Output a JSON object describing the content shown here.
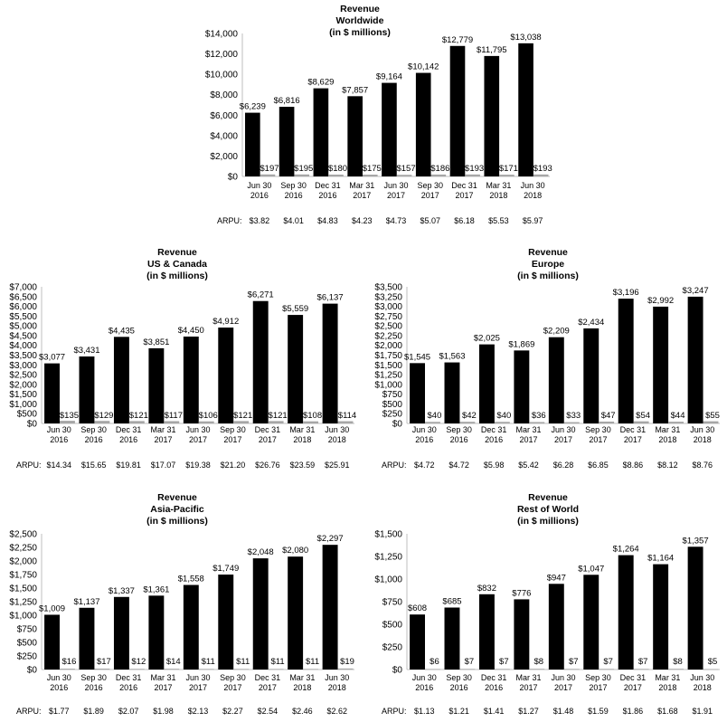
{
  "arpu_label": "ARPU:",
  "categories": [
    [
      "Jun 30",
      "2016"
    ],
    [
      "Sep 30",
      "2016"
    ],
    [
      "Dec 31",
      "2016"
    ],
    [
      "Mar 31",
      "2017"
    ],
    [
      "Jun 30",
      "2017"
    ],
    [
      "Sep 30",
      "2017"
    ],
    [
      "Dec 31",
      "2017"
    ],
    [
      "Mar 31",
      "2018"
    ],
    [
      "Jun 30",
      "2018"
    ]
  ],
  "chart_data": [
    {
      "type": "bar",
      "title": [
        "Revenue",
        "Worldwide",
        "(in $ millions)"
      ],
      "ylim": [
        0,
        14000
      ],
      "ytick_step": 2000,
      "series": [
        {
          "name": "",
          "color": "#000000",
          "values": [
            6239,
            6816,
            8629,
            7857,
            9164,
            10142,
            12779,
            11795,
            13038
          ],
          "labels": [
            "$6,239",
            "$6,816",
            "$8,629",
            "$7,857",
            "$9,164",
            "$10,142",
            "$12,779",
            "$11,795",
            "$13,038"
          ]
        },
        {
          "name": "",
          "color": "#a6a6a6",
          "values": [
            197,
            195,
            180,
            175,
            157,
            186,
            193,
            171,
            193
          ],
          "labels": [
            "$197",
            "$195",
            "$180",
            "$175",
            "$157",
            "$186",
            "$193",
            "$171",
            "$193"
          ]
        }
      ],
      "arpu": [
        "$3.82",
        "$4.01",
        "$4.83",
        "$4.23",
        "$4.73",
        "$5.07",
        "$6.18",
        "$5.53",
        "$5.97"
      ]
    },
    {
      "type": "bar",
      "title": [
        "Revenue",
        "US & Canada",
        "(in $ millions)"
      ],
      "ylim": [
        0,
        7000
      ],
      "ytick_step": 500,
      "series": [
        {
          "name": "",
          "color": "#000000",
          "values": [
            3077,
            3431,
            4435,
            3851,
            4450,
            4912,
            6271,
            5559,
            6137
          ],
          "labels": [
            "$3,077",
            "$3,431",
            "$4,435",
            "$3,851",
            "$4,450",
            "$4,912",
            "$6,271",
            "$5,559",
            "$6,137"
          ]
        },
        {
          "name": "",
          "color": "#a6a6a6",
          "values": [
            135,
            129,
            121,
            117,
            106,
            121,
            121,
            108,
            114
          ],
          "labels": [
            "$135",
            "$129",
            "$121",
            "$117",
            "$106",
            "$121",
            "$121",
            "$108",
            "$114"
          ]
        }
      ],
      "arpu": [
        "$14.34",
        "$15.65",
        "$19.81",
        "$17.07",
        "$19.38",
        "$21.20",
        "$26.76",
        "$23.59",
        "$25.91"
      ]
    },
    {
      "type": "bar",
      "title": [
        "Revenue",
        "Europe",
        "(in $ millions)"
      ],
      "ylim": [
        0,
        3500
      ],
      "ytick_step": 250,
      "series": [
        {
          "name": "",
          "color": "#000000",
          "values": [
            1545,
            1563,
            2025,
            1869,
            2209,
            2434,
            3196,
            2992,
            3247
          ],
          "labels": [
            "$1,545",
            "$1,563",
            "$2,025",
            "$1,869",
            "$2,209",
            "$2,434",
            "$3,196",
            "$2,992",
            "$3,247"
          ]
        },
        {
          "name": "",
          "color": "#a6a6a6",
          "values": [
            40,
            42,
            40,
            36,
            33,
            47,
            54,
            44,
            55
          ],
          "labels": [
            "$40",
            "$42",
            "$40",
            "$36",
            "$33",
            "$47",
            "$54",
            "$44",
            "$55"
          ]
        }
      ],
      "arpu": [
        "$4.72",
        "$4.72",
        "$5.98",
        "$5.42",
        "$6.28",
        "$6.85",
        "$8.86",
        "$8.12",
        "$8.76"
      ]
    },
    {
      "type": "bar",
      "title": [
        "Revenue",
        "Asia-Pacific",
        "(in $ millions)"
      ],
      "ylim": [
        0,
        2500
      ],
      "ytick_step": 250,
      "series": [
        {
          "name": "",
          "color": "#000000",
          "values": [
            1009,
            1137,
            1337,
            1361,
            1558,
            1749,
            2048,
            2080,
            2297
          ],
          "labels": [
            "$1,009",
            "$1,137",
            "$1,337",
            "$1,361",
            "$1,558",
            "$1,749",
            "$2,048",
            "$2,080",
            "$2,297"
          ]
        },
        {
          "name": "",
          "color": "#a6a6a6",
          "values": [
            16,
            17,
            12,
            14,
            11,
            11,
            11,
            11,
            19
          ],
          "labels": [
            "$16",
            "$17",
            "$12",
            "$14",
            "$11",
            "$11",
            "$11",
            "$11",
            "$19"
          ]
        }
      ],
      "arpu": [
        "$1.77",
        "$1.89",
        "$2.07",
        "$1.98",
        "$2.13",
        "$2.27",
        "$2.54",
        "$2.46",
        "$2.62"
      ]
    },
    {
      "type": "bar",
      "title": [
        "Revenue",
        "Rest of World",
        "(in $ millions)"
      ],
      "ylim": [
        0,
        1500
      ],
      "ytick_step": 250,
      "series": [
        {
          "name": "",
          "color": "#000000",
          "values": [
            608,
            685,
            832,
            776,
            947,
            1047,
            1264,
            1164,
            1357
          ],
          "labels": [
            "$608",
            "$685",
            "$832",
            "$776",
            "$947",
            "$1,047",
            "$1,264",
            "$1,164",
            "$1,357"
          ]
        },
        {
          "name": "",
          "color": "#a6a6a6",
          "values": [
            6,
            7,
            7,
            8,
            7,
            7,
            7,
            8,
            5
          ],
          "labels": [
            "$6",
            "$7",
            "$7",
            "$8",
            "$7",
            "$7",
            "$7",
            "$8",
            "$5"
          ]
        }
      ],
      "arpu": [
        "$1.13",
        "$1.21",
        "$1.41",
        "$1.27",
        "$1.48",
        "$1.59",
        "$1.86",
        "$1.68",
        "$1.91"
      ]
    }
  ]
}
